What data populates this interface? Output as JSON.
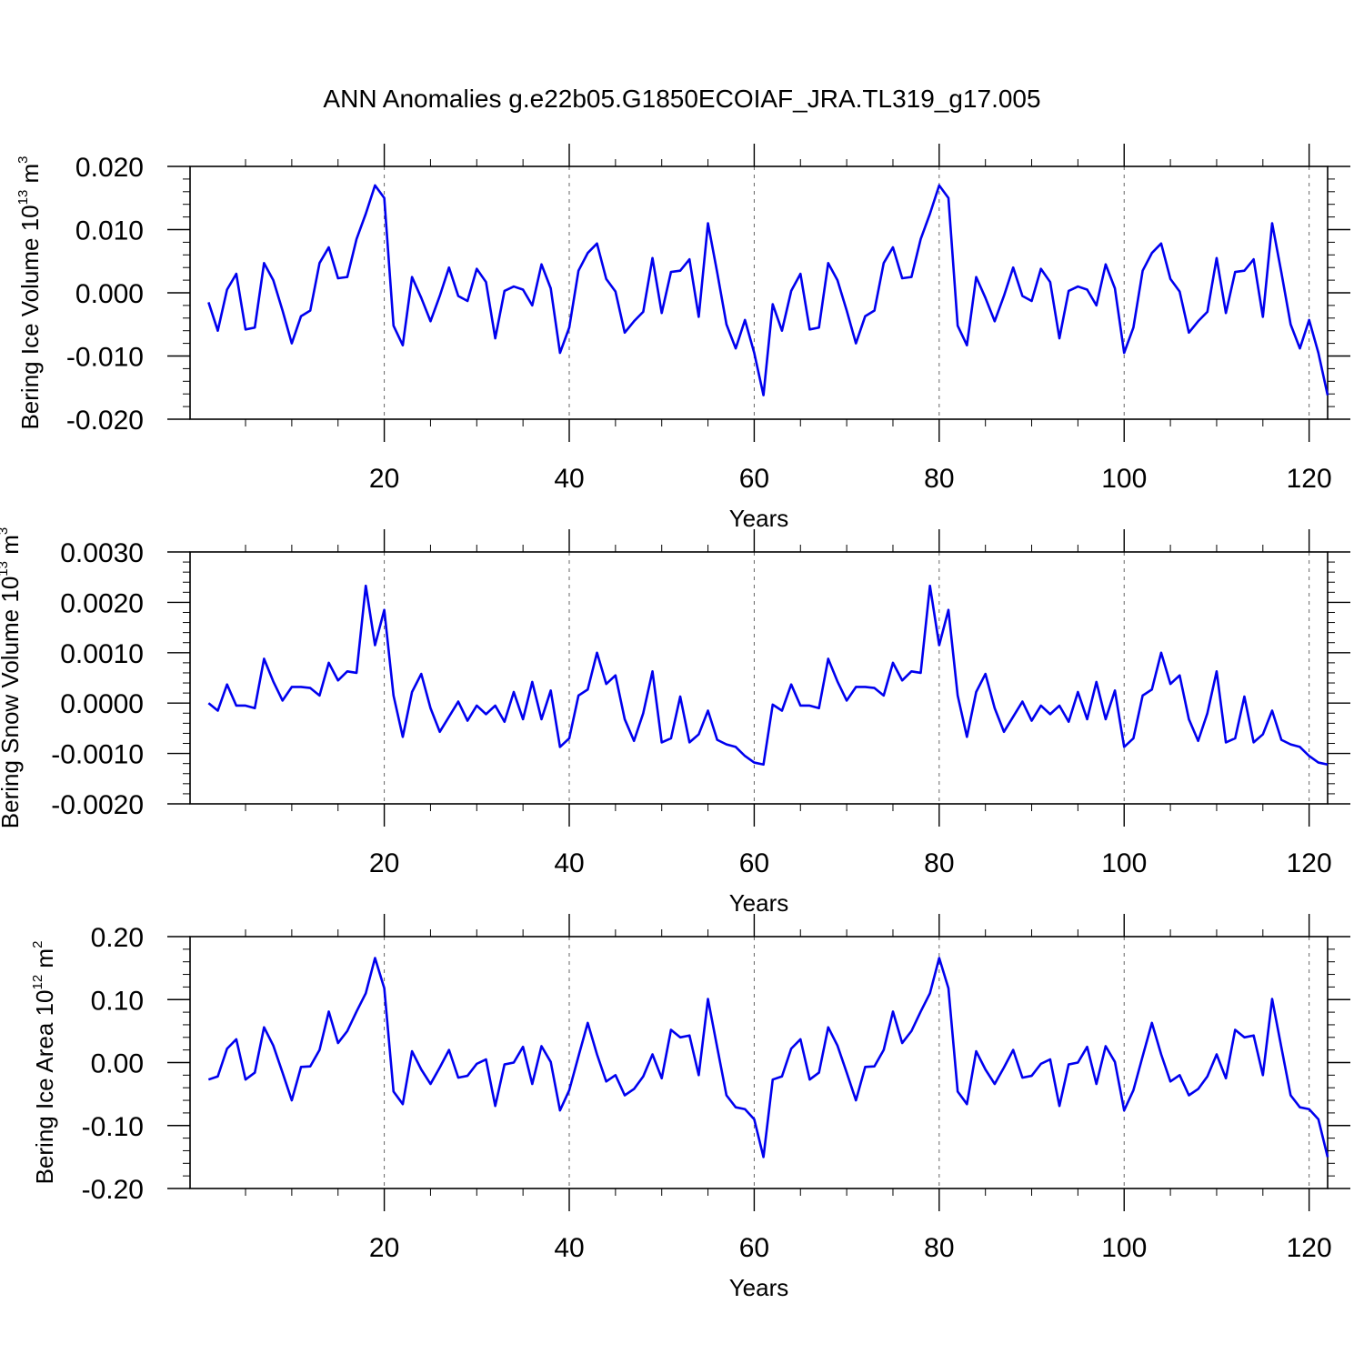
{
  "title": "ANN Anomalies g.e22b05.G1850ECOIAF_JRA.TL319_g17.005",
  "chart_data": [
    {
      "type": "line",
      "title": "ANN Anomalies g.e22b05.G1850ECOIAF_JRA.TL319_g17.005",
      "xlabel": "Years",
      "ylabel": {
        "main": "Bering Ice Volume 10",
        "sup": "13",
        "unit": " m",
        "unit_sup": "3"
      },
      "xlim": [
        -1,
        122
      ],
      "ylim": [
        -0.02,
        0.02
      ],
      "x_ticks": [
        20,
        40,
        60,
        80,
        100,
        120
      ],
      "x_tick_labels": [
        "20",
        "40",
        "60",
        "80",
        "100",
        "120"
      ],
      "y_ticks": [
        -0.02,
        -0.01,
        0.0,
        0.01,
        0.02
      ],
      "y_tick_labels": [
        "-0.020",
        "-0.010",
        "0.000",
        "0.010",
        "0.020"
      ],
      "line_color": "#0000ee",
      "series": [
        {
          "name": "Bering Ice Volume",
          "x_start": 1,
          "values": [
            -0.0015,
            -0.006,
            0.0005,
            0.003,
            -0.0058,
            -0.0055,
            0.0047,
            0.002,
            -0.0028,
            -0.008,
            -0.0037,
            -0.0028,
            0.0047,
            0.0072,
            0.0023,
            0.0025,
            0.0085,
            0.0125,
            0.017,
            0.015,
            -0.0052,
            -0.0083,
            0.0025,
            -0.0008,
            -0.0045,
            -0.0005,
            0.004,
            -0.0005,
            -0.0013,
            0.0038,
            0.0017,
            -0.0072,
            0.0003,
            0.001,
            0.0005,
            -0.002,
            0.0045,
            0.0007,
            -0.0095,
            -0.0055,
            0.0035,
            0.0063,
            0.0078,
            0.0022,
            0.0002,
            -0.0063,
            -0.0045,
            -0.003,
            0.0055,
            -0.0032,
            0.0033,
            0.0035,
            0.0053,
            -0.0038,
            0.011,
            0.0032,
            -0.005,
            -0.0088,
            -0.0043,
            -0.0095,
            -0.0162,
            -0.0018,
            -0.006,
            0.0003,
            0.003,
            -0.0058,
            -0.0055,
            0.0047,
            0.002,
            -0.0028,
            -0.008,
            -0.0037,
            -0.0028,
            0.0047,
            0.0072,
            0.0023,
            0.0025,
            0.0085,
            0.0125,
            0.017,
            0.015,
            -0.0052,
            -0.0083,
            0.0025,
            -0.0008,
            -0.0045,
            -0.0005,
            0.004,
            -0.0005,
            -0.0013,
            0.0038,
            0.0017,
            -0.0072,
            0.0003,
            0.001,
            0.0005,
            -0.002,
            0.0045,
            0.0007,
            -0.0095,
            -0.0055,
            0.0035,
            0.0063,
            0.0078,
            0.0022,
            0.0002,
            -0.0063,
            -0.0045,
            -0.003,
            0.0055,
            -0.0032,
            0.0033,
            0.0035,
            0.0053,
            -0.0038,
            0.011,
            0.0032,
            -0.005,
            -0.0088,
            -0.0043,
            -0.0095,
            -0.0162
          ]
        }
      ]
    },
    {
      "type": "line",
      "xlabel": "Years",
      "ylabel": {
        "main": "Bering Snow Volume 10",
        "sup": "13",
        "unit": " m",
        "unit_sup": "3"
      },
      "xlim": [
        -1,
        122
      ],
      "ylim": [
        -0.002,
        0.003
      ],
      "x_ticks": [
        20,
        40,
        60,
        80,
        100,
        120
      ],
      "x_tick_labels": [
        "20",
        "40",
        "60",
        "80",
        "100",
        "120"
      ],
      "y_ticks": [
        -0.002,
        -0.001,
        0.0,
        0.001,
        0.002,
        0.003
      ],
      "y_tick_labels": [
        "-0.0020",
        "-0.0010",
        "0.0000",
        "0.0010",
        "0.0020",
        "0.0030"
      ],
      "line_color": "#0000ee",
      "series": [
        {
          "name": "Bering Snow Volume",
          "x_start": 1,
          "values": [
            0.0,
            -0.00015,
            0.00037,
            -5e-05,
            -5e-05,
            -0.0001,
            0.00088,
            0.00043,
            5e-05,
            0.00032,
            0.00032,
            0.0003,
            0.00015,
            0.0008,
            0.00045,
            0.00063,
            0.0006,
            0.00233,
            0.00115,
            0.00185,
            0.00015,
            -0.00067,
            0.00022,
            0.00058,
            -0.0001,
            -0.00057,
            -0.00027,
            3e-05,
            -0.00035,
            -5e-05,
            -0.00022,
            -5e-05,
            -0.00037,
            0.00022,
            -0.00032,
            0.00042,
            -0.00032,
            0.00025,
            -0.00087,
            -0.0007,
            0.00015,
            0.00027,
            0.001,
            0.00038,
            0.00055,
            -0.00032,
            -0.00075,
            -0.0002,
            0.00063,
            -0.00078,
            -0.0007,
            0.00013,
            -0.00078,
            -0.00062,
            -0.00015,
            -0.00073,
            -0.00082,
            -0.00087,
            -0.00105,
            -0.00118,
            -0.00122,
            -3e-05,
            -0.00015,
            0.00037,
            -5e-05,
            -5e-05,
            -0.0001,
            0.00088,
            0.00043,
            5e-05,
            0.00032,
            0.00032,
            0.0003,
            0.00015,
            0.0008,
            0.00045,
            0.00063,
            0.0006,
            0.00233,
            0.00115,
            0.00185,
            0.00015,
            -0.00067,
            0.00022,
            0.00058,
            -0.0001,
            -0.00057,
            -0.00027,
            3e-05,
            -0.00035,
            -5e-05,
            -0.00022,
            -5e-05,
            -0.00037,
            0.00022,
            -0.00032,
            0.00042,
            -0.00032,
            0.00025,
            -0.00087,
            -0.0007,
            0.00015,
            0.00027,
            0.001,
            0.00038,
            0.00055,
            -0.00032,
            -0.00075,
            -0.0002,
            0.00063,
            -0.00078,
            -0.0007,
            0.00013,
            -0.00078,
            -0.00062,
            -0.00015,
            -0.00073,
            -0.00082,
            -0.00087,
            -0.00105,
            -0.00118,
            -0.00122
          ]
        }
      ]
    },
    {
      "type": "line",
      "xlabel": "Years",
      "ylabel": {
        "main": "Bering Ice Area 10",
        "sup": "12",
        "unit": " m",
        "unit_sup": "2"
      },
      "xlim": [
        -1,
        122
      ],
      "ylim": [
        -0.2,
        0.2
      ],
      "x_ticks": [
        20,
        40,
        60,
        80,
        100,
        120
      ],
      "x_tick_labels": [
        "20",
        "40",
        "60",
        "80",
        "100",
        "120"
      ],
      "y_ticks": [
        -0.2,
        -0.1,
        0.0,
        0.1,
        0.2
      ],
      "y_tick_labels": [
        "-0.20",
        "-0.10",
        "0.00",
        "0.10",
        "0.20"
      ],
      "line_color": "#0000ee",
      "series": [
        {
          "name": "Bering Ice Area",
          "x_start": 1,
          "values": [
            -0.027,
            -0.022,
            0.022,
            0.037,
            -0.027,
            -0.016,
            0.056,
            0.027,
            -0.016,
            -0.06,
            -0.007,
            -0.006,
            0.02,
            0.081,
            0.031,
            0.05,
            0.081,
            0.11,
            0.166,
            0.118,
            -0.046,
            -0.066,
            0.018,
            -0.011,
            -0.034,
            -0.008,
            0.02,
            -0.024,
            -0.021,
            -0.002,
            0.005,
            -0.069,
            -0.003,
            0.0,
            0.025,
            -0.034,
            0.026,
            0.001,
            -0.076,
            -0.044,
            0.01,
            0.063,
            0.013,
            -0.03,
            -0.02,
            -0.052,
            -0.042,
            -0.022,
            0.013,
            -0.025,
            0.052,
            0.04,
            0.043,
            -0.02,
            0.101,
            0.024,
            -0.052,
            -0.071,
            -0.074,
            -0.09,
            -0.15,
            -0.027,
            -0.022,
            0.022,
            0.037,
            -0.027,
            -0.016,
            0.056,
            0.027,
            -0.016,
            -0.06,
            -0.007,
            -0.006,
            0.02,
            0.081,
            0.031,
            0.05,
            0.081,
            0.11,
            0.166,
            0.118,
            -0.046,
            -0.066,
            0.018,
            -0.011,
            -0.034,
            -0.008,
            0.02,
            -0.024,
            -0.021,
            -0.002,
            0.005,
            -0.069,
            -0.003,
            0.0,
            0.025,
            -0.034,
            0.026,
            0.001,
            -0.076,
            -0.044,
            0.01,
            0.063,
            0.013,
            -0.03,
            -0.02,
            -0.052,
            -0.042,
            -0.022,
            0.013,
            -0.025,
            0.052,
            0.04,
            0.043,
            -0.02,
            0.101,
            0.024,
            -0.052,
            -0.071,
            -0.074,
            -0.09,
            -0.15
          ]
        }
      ]
    }
  ]
}
